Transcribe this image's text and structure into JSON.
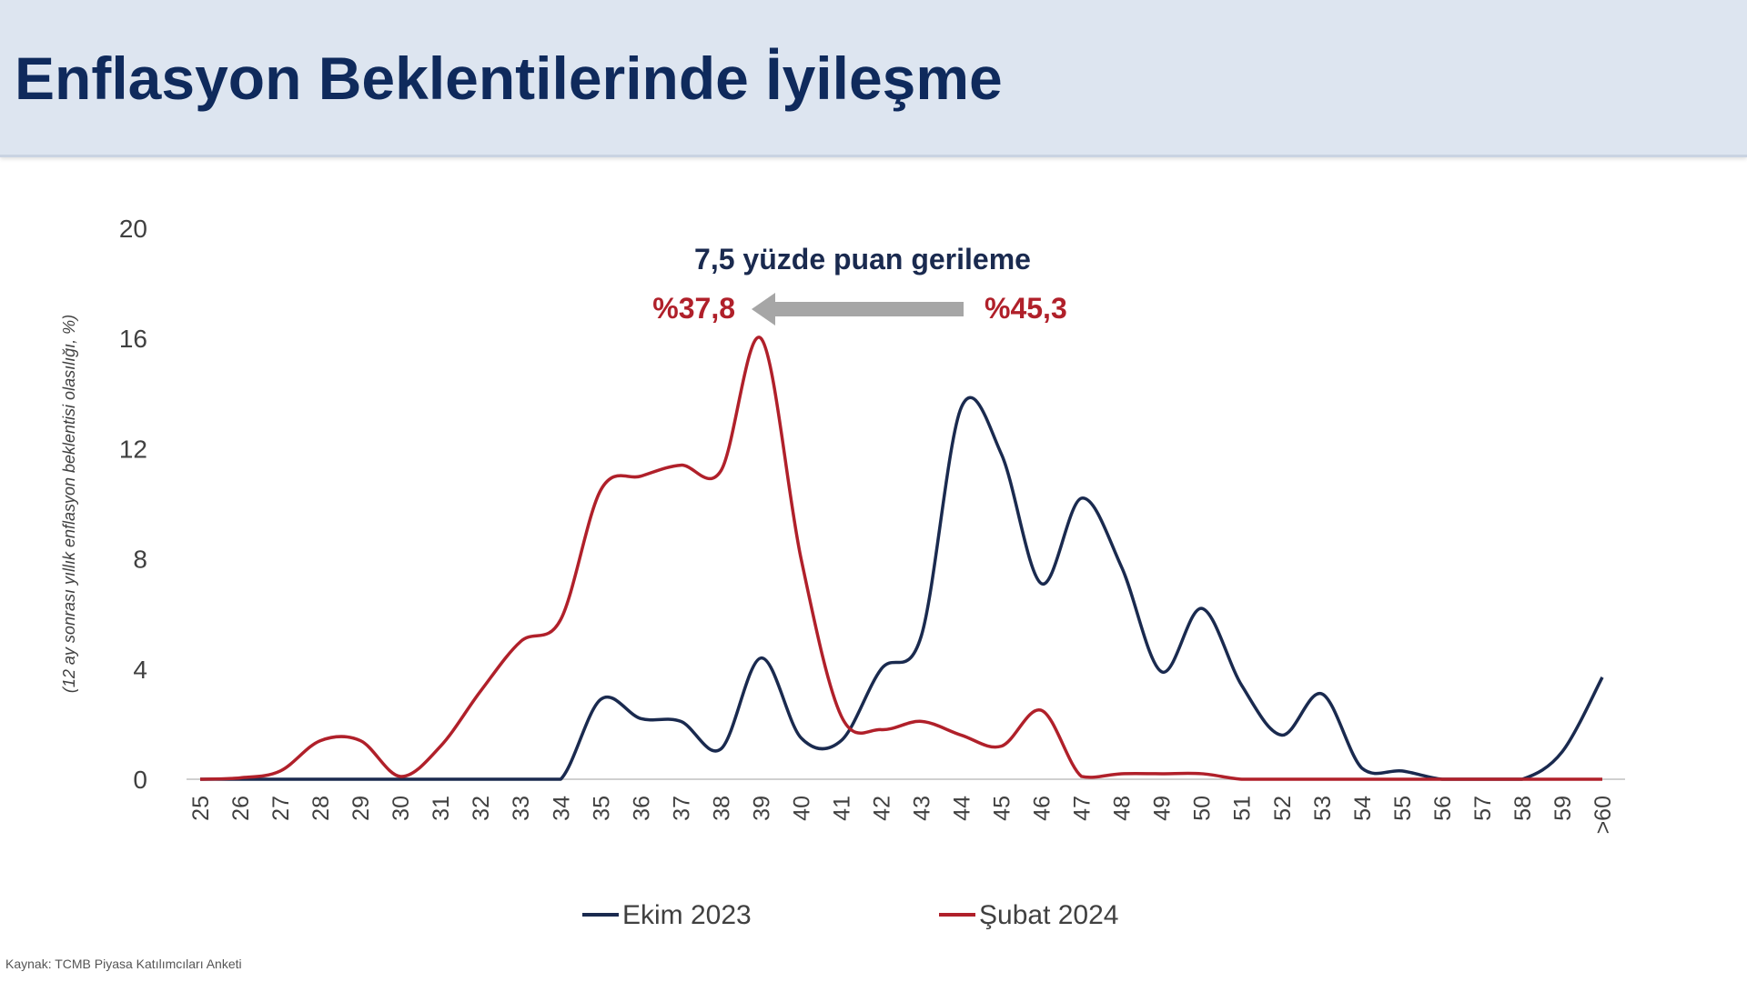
{
  "header": {
    "title": "Enflasyon Beklentilerinde İyileşme"
  },
  "source": "Kaynak: TCMB Piyasa Katılımcıları Anketi",
  "chart_data": {
    "type": "line",
    "title": "",
    "ylabel": "(12 ay sonrası yıllık enflasyon beklentisi olasılığı, %)",
    "xlabel": "",
    "ylim": [
      0,
      20
    ],
    "yticks": [
      0,
      4,
      8,
      12,
      16,
      20
    ],
    "categories": [
      "25",
      "26",
      "27",
      "28",
      "29",
      "30",
      "31",
      "32",
      "33",
      "34",
      "35",
      "36",
      "37",
      "38",
      "39",
      "40",
      "41",
      "42",
      "43",
      "44",
      "45",
      "46",
      "47",
      "48",
      "49",
      "50",
      "51",
      "52",
      "53",
      "54",
      "55",
      "56",
      "57",
      "58",
      "59",
      ">60"
    ],
    "series": [
      {
        "name": "Ekim 2023",
        "color": "#1a2a4f",
        "values": [
          0,
          0,
          0,
          0,
          0,
          0,
          0,
          0,
          0,
          0,
          2.9,
          2.2,
          2.1,
          1.1,
          4.4,
          1.5,
          1.4,
          4.0,
          5.2,
          13.5,
          11.8,
          7.1,
          10.2,
          7.7,
          3.9,
          6.2,
          3.4,
          1.6,
          3.1,
          0.4,
          0.3,
          0,
          0,
          0,
          1.0,
          3.7
        ]
      },
      {
        "name": "Şubat 2024",
        "color": "#b0202a",
        "values": [
          0,
          0.05,
          0.3,
          1.4,
          1.4,
          0.1,
          1.2,
          3.2,
          5.0,
          5.8,
          10.5,
          11.0,
          11.4,
          11.2,
          16.0,
          8.0,
          2.3,
          1.8,
          2.1,
          1.6,
          1.2,
          2.5,
          0.1,
          0.2,
          0.2,
          0.2,
          0,
          0,
          0,
          0,
          0,
          0,
          0,
          0,
          0,
          0
        ]
      }
    ],
    "annotations": {
      "headline": "7,5 yüzde puan gerileme",
      "from_label": "%45,3",
      "to_label": "%37,8",
      "label_color": "#b0202a",
      "arrow_color": "#a6a6a6"
    },
    "grid": false,
    "legend": "bottom"
  }
}
